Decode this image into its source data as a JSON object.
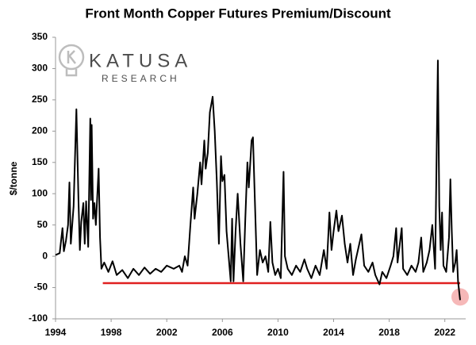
{
  "chart_data": {
    "type": "line",
    "title": "Front Month Copper Futures Premium/Discount",
    "ylabel": "$/tonne",
    "watermark": [
      "KATUSA",
      "RESEARCH"
    ],
    "xlim": [
      1994,
      2023.5
    ],
    "xticks": [
      1994,
      1998,
      2002,
      2006,
      2010,
      2014,
      2018,
      2022
    ],
    "ylim": [
      -100,
      350
    ],
    "yticks": [
      -100,
      -50,
      0,
      50,
      100,
      150,
      200,
      250,
      300,
      350
    ],
    "grid": false,
    "series": [
      {
        "name": "Premium/Discount",
        "color": "#000000",
        "x": [
          1994.0,
          1994.3,
          1994.5,
          1994.6,
          1994.75,
          1994.9,
          1995.0,
          1995.1,
          1995.3,
          1995.5,
          1995.65,
          1995.75,
          1995.85,
          1996.0,
          1996.1,
          1996.2,
          1996.35,
          1996.5,
          1996.55,
          1996.6,
          1996.7,
          1996.8,
          1996.9,
          1997.1,
          1997.2,
          1997.3,
          1997.5,
          1997.8,
          1998.1,
          1998.4,
          1998.8,
          1999.2,
          1999.6,
          2000.0,
          2000.4,
          2000.8,
          2001.2,
          2001.6,
          2002.0,
          2002.5,
          2002.9,
          2003.1,
          2003.3,
          2003.5,
          2003.7,
          2003.9,
          2004.0,
          2004.2,
          2004.4,
          2004.5,
          2004.7,
          2004.8,
          2004.95,
          2005.1,
          2005.3,
          2005.45,
          2005.6,
          2005.75,
          2005.9,
          2006.0,
          2006.15,
          2006.3,
          2006.45,
          2006.6,
          2006.7,
          2006.8,
          2006.95,
          2007.1,
          2007.3,
          2007.5,
          2007.65,
          2007.8,
          2007.9,
          2008.1,
          2008.2,
          2008.35,
          2008.5,
          2008.7,
          2008.9,
          2009.1,
          2009.3,
          2009.45,
          2009.6,
          2009.8,
          2010.0,
          2010.2,
          2010.4,
          2010.5,
          2010.7,
          2011.0,
          2011.3,
          2011.6,
          2011.9,
          2012.1,
          2012.4,
          2012.7,
          2013.0,
          2013.3,
          2013.5,
          2013.7,
          2013.85,
          2014.0,
          2014.2,
          2014.35,
          2014.6,
          2014.8,
          2015.0,
          2015.2,
          2015.4,
          2015.6,
          2015.8,
          2016.0,
          2016.2,
          2016.5,
          2016.8,
          2017.0,
          2017.3,
          2017.5,
          2017.8,
          2018.1,
          2018.3,
          2018.5,
          2018.6,
          2018.9,
          2019.0,
          2019.3,
          2019.6,
          2019.9,
          2020.1,
          2020.3,
          2020.45,
          2020.7,
          2020.9,
          2021.1,
          2021.3,
          2021.5,
          2021.6,
          2021.7,
          2021.8,
          2021.9,
          2022.1,
          2022.3,
          2022.4,
          2022.5,
          2022.6,
          2022.75,
          2022.85,
          2022.95,
          2023.1
        ],
        "values": [
          2,
          5,
          45,
          8,
          25,
          50,
          118,
          20,
          80,
          235,
          90,
          10,
          55,
          85,
          20,
          88,
          15,
          220,
          90,
          210,
          60,
          85,
          50,
          140,
          30,
          -20,
          -10,
          -25,
          -8,
          -30,
          -22,
          -35,
          -20,
          -30,
          -18,
          -28,
          -20,
          -25,
          -15,
          -20,
          -15,
          -25,
          0,
          -15,
          50,
          110,
          60,
          100,
          150,
          115,
          185,
          140,
          165,
          230,
          255,
          200,
          120,
          20,
          160,
          120,
          130,
          40,
          0,
          -40,
          60,
          -40,
          40,
          100,
          20,
          -40,
          60,
          150,
          110,
          185,
          190,
          80,
          -30,
          10,
          -10,
          0,
          -25,
          55,
          -10,
          -30,
          -20,
          -35,
          135,
          0,
          -20,
          -30,
          -15,
          -25,
          -5,
          -20,
          -35,
          -15,
          -30,
          10,
          -20,
          70,
          10,
          40,
          73,
          40,
          65,
          20,
          -10,
          20,
          -30,
          -5,
          15,
          35,
          -15,
          -25,
          -10,
          -30,
          -45,
          -25,
          -35,
          -15,
          0,
          45,
          -10,
          45,
          -20,
          -30,
          -15,
          -25,
          -10,
          30,
          -25,
          -10,
          10,
          50,
          -20,
          313,
          80,
          10,
          70,
          -15,
          -25,
          30,
          123,
          40,
          -25,
          -10,
          10,
          -40,
          -70
        ]
      }
    ],
    "reference_line": {
      "value": -43,
      "x": [
        1997.4,
        2023.1
      ],
      "color": "#e02020"
    },
    "highlight": {
      "x": 2023.1,
      "y": -65,
      "color": "#f4a6a6"
    }
  }
}
